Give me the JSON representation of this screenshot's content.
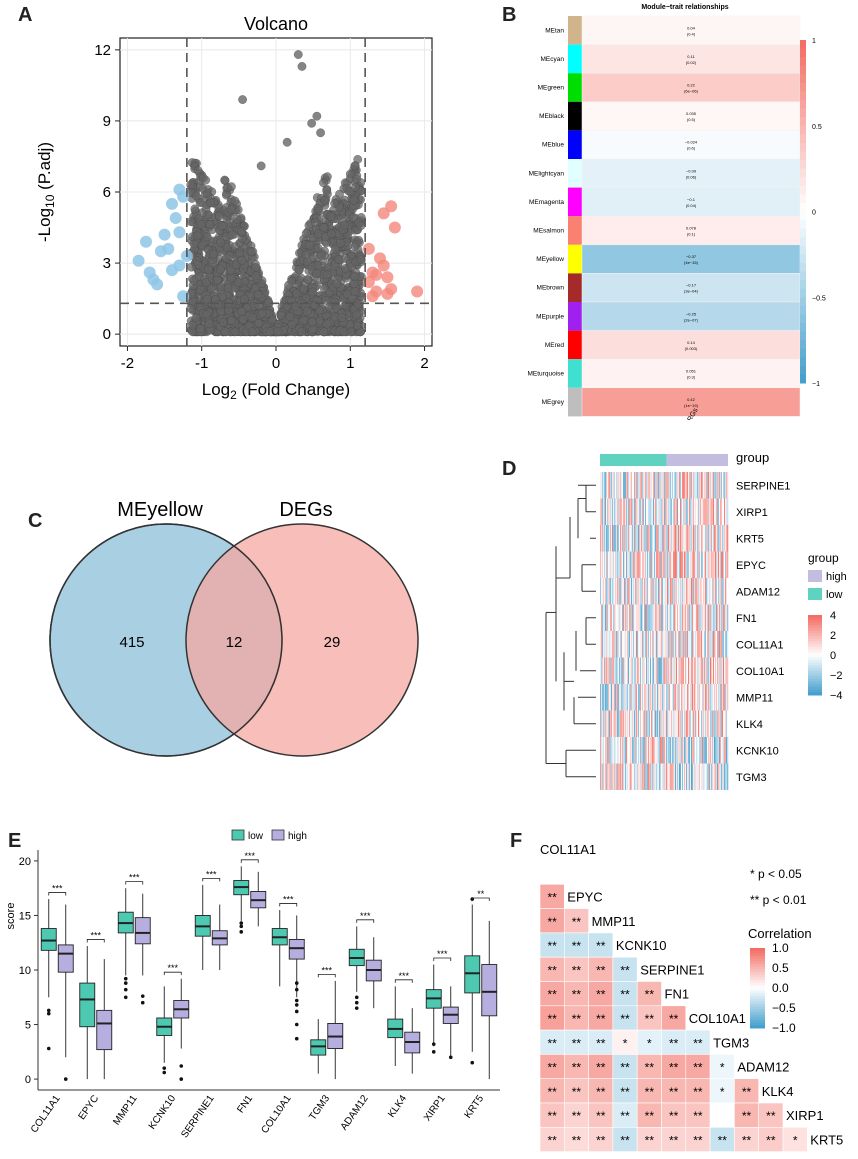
{
  "panels": {
    "a": "A",
    "b": "B",
    "c": "C",
    "d": "D",
    "e": "E",
    "f": "F"
  },
  "volcano": {
    "title": "Volcano",
    "xlabel": "Log2 (Fold Change)",
    "ylabel": "-Log10 (P.adj)",
    "xticks": [
      "-2",
      "-1",
      "0",
      "1",
      "2"
    ],
    "yticks": [
      "0",
      "3",
      "6",
      "9",
      "12"
    ],
    "chart_data": {
      "type": "scatter",
      "title": "Volcano",
      "xlim": [
        -2.1,
        2.1
      ],
      "ylim": [
        -0.5,
        12.5
      ],
      "thresholds": {
        "logfc": [
          -1.2,
          1.2
        ],
        "padj": 1.3
      },
      "colors": {
        "down": "#8ec5e6",
        "up": "#f4877c",
        "ns": "#666666"
      },
      "up_points": [
        [
          1.25,
          3.6
        ],
        [
          1.3,
          2.6
        ],
        [
          1.35,
          1.8
        ],
        [
          1.4,
          3.2
        ],
        [
          1.45,
          2.9
        ],
        [
          1.5,
          1.7
        ],
        [
          1.55,
          5.4
        ],
        [
          1.6,
          4.5
        ],
        [
          1.45,
          5.1
        ],
        [
          1.3,
          1.6
        ],
        [
          1.25,
          2.2
        ],
        [
          1.35,
          2.5
        ],
        [
          1.9,
          1.8
        ],
        [
          1.5,
          2.4
        ],
        [
          1.55,
          1.9
        ]
      ],
      "down_points": [
        [
          -1.85,
          3.1
        ],
        [
          -1.75,
          3.9
        ],
        [
          -1.7,
          2.6
        ],
        [
          -1.6,
          2.1
        ],
        [
          -1.55,
          3.5
        ],
        [
          -1.5,
          4.2
        ],
        [
          -1.45,
          3.6
        ],
        [
          -1.4,
          5.5
        ],
        [
          -1.35,
          4.9
        ],
        [
          -1.3,
          6.1
        ],
        [
          -1.25,
          5.8
        ],
        [
          -1.3,
          4.3
        ],
        [
          -1.4,
          2.7
        ],
        [
          -1.25,
          1.6
        ],
        [
          -1.3,
          2.9
        ],
        [
          -1.2,
          3.3
        ],
        [
          -1.65,
          2.3
        ]
      ],
      "ns_extra": [
        [
          -0.45,
          9.9
        ],
        [
          0.3,
          11.8
        ],
        [
          0.35,
          11.3
        ],
        [
          0.55,
          9.2
        ],
        [
          0.6,
          8.5
        ],
        [
          0.48,
          8.9
        ],
        [
          -0.2,
          7.1
        ],
        [
          0.15,
          8.1
        ]
      ]
    }
  },
  "module_trait": {
    "title": "Module−trait relationships",
    "xlabel": "MMRGs",
    "scale_ticks": [
      "1",
      "0.5",
      "0",
      "−0.5",
      "−1"
    ],
    "chart_data": {
      "type": "heatmap",
      "modules": [
        "MEtan",
        "MEcyan",
        "MEgreen",
        "MEblack",
        "MEblue",
        "MElightcyan",
        "MEmagenta",
        "MEsalmon",
        "MEyellow",
        "MEbrown",
        "MEpurple",
        "MEred",
        "MEturquoise",
        "MEgrey"
      ],
      "module_colors": [
        "#d2b48c",
        "#00ffff",
        "#00dd00",
        "#000000",
        "#0000ff",
        "#e0ffff",
        "#ff00ff",
        "#fa8072",
        "#ffff00",
        "#a52a2a",
        "#a020f0",
        "#ff0000",
        "#40e0d0",
        "#bebebe"
      ],
      "correlations": [
        0.04,
        0.11,
        0.22,
        0.035,
        -0.024,
        -0.09,
        -0.1,
        0.078,
        -0.37,
        -0.17,
        -0.25,
        0.14,
        0.051,
        0.42
      ],
      "pvalues": [
        "(0.4)",
        "(0.02)",
        "(6e−06)",
        "(0.5)",
        "(0.6)",
        "(0.06)",
        "(0.04)",
        "(0.1)",
        "(4e−15)",
        "(3e−04)",
        "(2e−07)",
        "(0.003)",
        "(0.3)",
        "(1e−19)"
      ],
      "labels": [
        "0.04",
        "0.11",
        "0.22",
        "0.035",
        "−0.024",
        "−0.09",
        "−0.1",
        "0.078",
        "−0.37",
        "−0.17",
        "−0.25",
        "0.14",
        "0.051",
        "0.42"
      ]
    }
  },
  "venn": {
    "left_label": "MEyellow",
    "right_label": "DEGs",
    "left_only": "415",
    "overlap": "12",
    "right_only": "29",
    "left_color": "#a9cfe3",
    "right_color": "#f5a8a2"
  },
  "heatmap": {
    "legend_title": "group",
    "group_row_label": "group",
    "groups": [
      "high",
      "low"
    ],
    "group_colors": {
      "high": "#c3bde0",
      "low": "#5fd3c0"
    },
    "genes": [
      "SERPINE1",
      "XIRP1",
      "KRT5",
      "EPYC",
      "ADAM12",
      "FN1",
      "COL11A1",
      "COL10A1",
      "MMP11",
      "KLK4",
      "KCNK10",
      "TGM3"
    ],
    "scale_ticks": [
      "4",
      "2",
      "0",
      "−2",
      "−4"
    ]
  },
  "boxplot": {
    "legend": [
      "low",
      "high"
    ],
    "colors": {
      "low": "#4cc9b0",
      "high": "#b7aee0"
    },
    "ylabel": "score",
    "yticks": [
      "0",
      "5",
      "10",
      "15",
      "20"
    ],
    "chart_data": {
      "type": "box",
      "ylim": [
        -1,
        21
      ],
      "categories": [
        "COL11A1",
        "EPYC",
        "MMP11",
        "KCNK10",
        "SERPINE1",
        "FN1",
        "COL10A1",
        "TGM3",
        "ADAM12",
        "KLK4",
        "XIRP1",
        "KRT5"
      ],
      "significance": [
        "***",
        "***",
        "***",
        "***",
        "***",
        "***",
        "***",
        "***",
        "***",
        "***",
        "***",
        "**"
      ],
      "low": [
        {
          "min": 7.5,
          "q1": 11.8,
          "median": 12.7,
          "q3": 13.8,
          "max": 16.5,
          "outliers": [
            2.8,
            6,
            6.3
          ]
        },
        {
          "min": 0,
          "q1": 4.8,
          "median": 7.3,
          "q3": 8.8,
          "max": 12.2,
          "outliers": []
        },
        {
          "min": 9.5,
          "q1": 13.4,
          "median": 14.3,
          "q3": 15.3,
          "max": 17.5,
          "outliers": [
            7.5,
            8.2,
            8.8,
            9.2
          ]
        },
        {
          "min": 1.5,
          "q1": 4.0,
          "median": 4.8,
          "q3": 5.6,
          "max": 8.5,
          "outliers": [
            0.6,
            1.0
          ]
        },
        {
          "min": 10,
          "q1": 13.1,
          "median": 14.0,
          "q3": 15.0,
          "max": 17.8,
          "outliers": []
        },
        {
          "min": 14.5,
          "q1": 16.9,
          "median": 17.6,
          "q3": 18.2,
          "max": 19.5,
          "outliers": [
            13.5,
            14,
            14.3
          ]
        },
        {
          "min": 8.5,
          "q1": 12.3,
          "median": 13.0,
          "q3": 13.8,
          "max": 15.5,
          "outliers": []
        },
        {
          "min": 0.5,
          "q1": 2.2,
          "median": 3.0,
          "q3": 3.6,
          "max": 5.5,
          "outliers": []
        },
        {
          "min": 8,
          "q1": 10.4,
          "median": 11.1,
          "q3": 11.9,
          "max": 14,
          "outliers": [
            6.5,
            7,
            7.5
          ]
        },
        {
          "min": 1.2,
          "q1": 3.8,
          "median": 4.6,
          "q3": 5.5,
          "max": 8.5,
          "outliers": []
        },
        {
          "min": 3,
          "q1": 6.5,
          "median": 7.4,
          "q3": 8.2,
          "max": 10.5,
          "outliers": [
            2.5,
            3.2
          ]
        },
        {
          "min": 2.5,
          "q1": 7.9,
          "median": 9.7,
          "q3": 11.3,
          "max": 16,
          "outliers": [
            1.5,
            16.5
          ]
        }
      ],
      "high": [
        {
          "min": 2,
          "q1": 9.8,
          "median": 11.5,
          "q3": 12.3,
          "max": 16,
          "outliers": [
            0
          ]
        },
        {
          "min": 0,
          "q1": 2.7,
          "median": 5.1,
          "q3": 6.3,
          "max": 11,
          "outliers": []
        },
        {
          "min": 9.5,
          "q1": 12.4,
          "median": 13.4,
          "q3": 14.8,
          "max": 17,
          "outliers": [
            7,
            7.6
          ]
        },
        {
          "min": 2.8,
          "q1": 5.6,
          "median": 6.4,
          "q3": 7.2,
          "max": 9.2,
          "outliers": [
            0,
            1.2
          ]
        },
        {
          "min": 10,
          "q1": 12.3,
          "median": 12.9,
          "q3": 13.6,
          "max": 16,
          "outliers": []
        },
        {
          "min": 14,
          "q1": 15.7,
          "median": 16.4,
          "q3": 17.2,
          "max": 19,
          "outliers": []
        },
        {
          "min": 7.5,
          "q1": 11.0,
          "median": 12.0,
          "q3": 12.8,
          "max": 15,
          "outliers": [
            3.7,
            5,
            6.2,
            6.8,
            7.2,
            8.2,
            8.8
          ]
        },
        {
          "min": 0,
          "q1": 2.8,
          "median": 3.9,
          "q3": 5.1,
          "max": 9,
          "outliers": []
        },
        {
          "min": 6.5,
          "q1": 9.0,
          "median": 10.0,
          "q3": 10.9,
          "max": 13,
          "outliers": []
        },
        {
          "min": 0.5,
          "q1": 2.4,
          "median": 3.4,
          "q3": 4.3,
          "max": 6.5,
          "outliers": []
        },
        {
          "min": 2,
          "q1": 5.1,
          "median": 5.9,
          "q3": 6.6,
          "max": 8.5,
          "outliers": [
            2
          ]
        },
        {
          "min": 0,
          "q1": 5.8,
          "median": 8.0,
          "q3": 10.5,
          "max": 14.5,
          "outliers": []
        }
      ]
    }
  },
  "corrplot": {
    "legend_p1": "* p < 0.05",
    "legend_p2": "** p < 0.01",
    "legend_title": "Correlation",
    "scale_ticks": [
      "1.0",
      "0.5",
      "0.0",
      "−0.5",
      "−1.0"
    ],
    "chart_data": {
      "type": "heatmap",
      "genes": [
        "COL11A1",
        "EPYC",
        "MMP11",
        "KCNK10",
        "SERPINE1",
        "FN1",
        "COL10A1",
        "TGM3",
        "ADAM12",
        "KLK4",
        "XIRP1",
        "KRT5"
      ],
      "rows": [
        [],
        [
          [
            0.6,
            "**"
          ]
        ],
        [
          [
            0.6,
            "**"
          ],
          [
            0.4,
            "**"
          ]
        ],
        [
          [
            -0.3,
            "**"
          ],
          [
            -0.3,
            "**"
          ],
          [
            -0.3,
            "**"
          ]
        ],
        [
          [
            0.5,
            "**"
          ],
          [
            0.4,
            "**"
          ],
          [
            0.5,
            "**"
          ],
          [
            -0.3,
            "**"
          ]
        ],
        [
          [
            0.6,
            "**"
          ],
          [
            0.5,
            "**"
          ],
          [
            0.6,
            "**"
          ],
          [
            -0.3,
            "**"
          ],
          [
            0.5,
            "**"
          ]
        ],
        [
          [
            0.65,
            "**"
          ],
          [
            0.5,
            "**"
          ],
          [
            0.6,
            "**"
          ],
          [
            -0.3,
            "**"
          ],
          [
            0.4,
            "**"
          ],
          [
            0.6,
            "**"
          ]
        ],
        [
          [
            -0.2,
            "**"
          ],
          [
            -0.2,
            "**"
          ],
          [
            -0.2,
            "**"
          ],
          [
            0.1,
            "*"
          ],
          [
            -0.15,
            "*"
          ],
          [
            -0.2,
            "**"
          ],
          [
            -0.2,
            "**"
          ]
        ],
        [
          [
            0.6,
            "**"
          ],
          [
            0.5,
            "**"
          ],
          [
            0.6,
            "**"
          ],
          [
            -0.3,
            "**"
          ],
          [
            0.5,
            "**"
          ],
          [
            0.6,
            "**"
          ],
          [
            0.6,
            "**"
          ],
          [
            -0.1,
            "*"
          ]
        ],
        [
          [
            0.5,
            "**"
          ],
          [
            0.4,
            "**"
          ],
          [
            0.5,
            "**"
          ],
          [
            -0.3,
            "**"
          ],
          [
            0.5,
            "**"
          ],
          [
            0.5,
            "**"
          ],
          [
            0.5,
            "**"
          ],
          [
            -0.1,
            "*"
          ],
          [
            0.5,
            "**"
          ]
        ],
        [
          [
            0.4,
            "**"
          ],
          [
            0.3,
            "**"
          ],
          [
            0.4,
            "**"
          ],
          [
            -0.2,
            "**"
          ],
          [
            0.5,
            "**"
          ],
          [
            0.4,
            "**"
          ],
          [
            0.4,
            "**"
          ],
          [
            0.0,
            ""
          ],
          [
            0.5,
            "**"
          ],
          [
            0.4,
            "**"
          ]
        ],
        [
          [
            0.3,
            "**"
          ],
          [
            0.25,
            "**"
          ],
          [
            0.3,
            "**"
          ],
          [
            -0.3,
            "**"
          ],
          [
            0.3,
            "**"
          ],
          [
            0.3,
            "**"
          ],
          [
            0.3,
            "**"
          ],
          [
            -0.3,
            "**"
          ],
          [
            0.3,
            "**"
          ],
          [
            0.35,
            "**"
          ],
          [
            0.2,
            "*"
          ]
        ]
      ]
    }
  }
}
